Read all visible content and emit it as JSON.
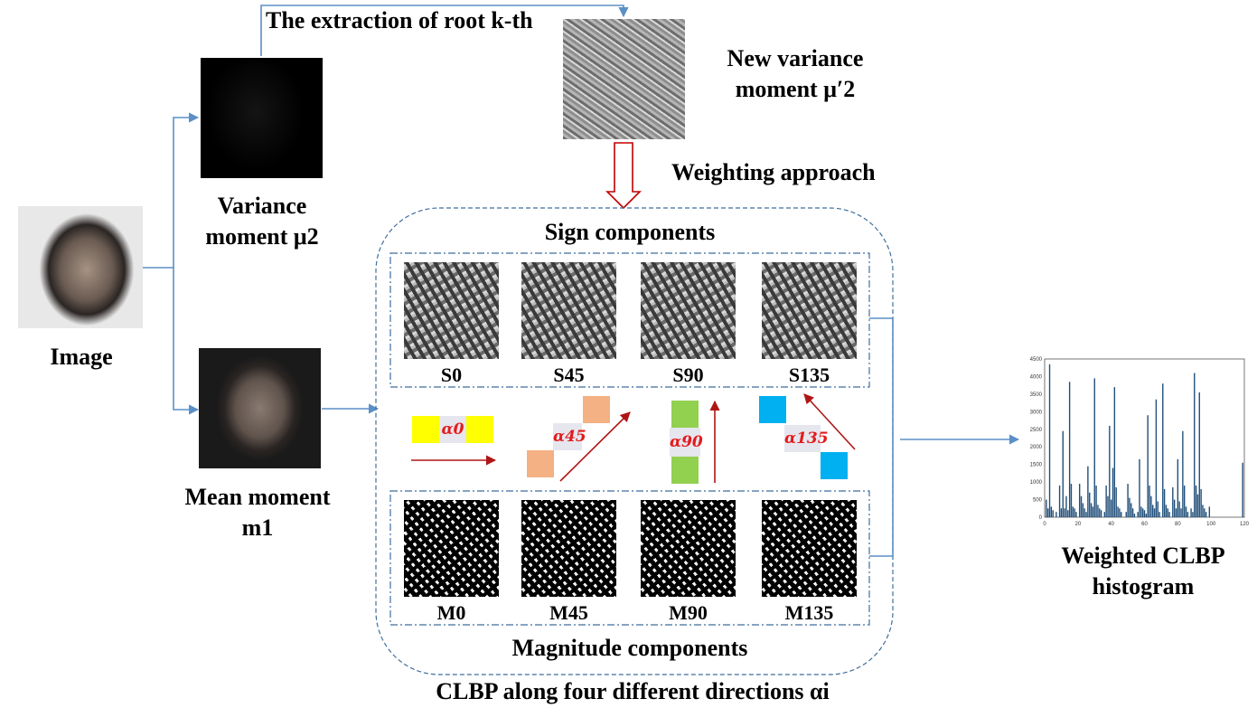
{
  "labels": {
    "extraction": "The extraction of root k-th",
    "new_variance": "New variance moment μ′2",
    "weighting": "Weighting approach",
    "variance": "Variance moment μ2",
    "image": "Image",
    "mean": "Mean moment m1",
    "sign_components": "Sign components",
    "magnitude_components": "Magnitude components",
    "clbp_caption": "CLBP along four different directions αi",
    "weighted_hist": "Weighted CLBP histogram"
  },
  "sign_labels": [
    "S0",
    "S45",
    "S90",
    "S135"
  ],
  "magnitude_labels": [
    "M0",
    "M45",
    "M90",
    "M135"
  ],
  "direction_alphas": [
    "α0",
    "α45",
    "α90",
    "α135"
  ],
  "colors": {
    "connector": "#5b8fc7",
    "box_border": "#3f6e9e",
    "red_arrow": "#b01515",
    "alpha_text": "#e31b1b",
    "yellow": "#ffff00",
    "peach": "#f4b183",
    "green": "#92d050",
    "cyan": "#00b0f0",
    "hist_bar": "#1f4e79"
  },
  "chart_data": {
    "type": "bar",
    "x": [
      1,
      2,
      3,
      4,
      5,
      6,
      7,
      8,
      9,
      10,
      11,
      12,
      13,
      14,
      15,
      16,
      17,
      18,
      19,
      20,
      21,
      22,
      23,
      24,
      25,
      26,
      27,
      28,
      29,
      30,
      31,
      32,
      33,
      34,
      35,
      36,
      37,
      38,
      39,
      40,
      41,
      42,
      43,
      44,
      45,
      46,
      47,
      48,
      49,
      50,
      51,
      52,
      53,
      54,
      55,
      56,
      57,
      58,
      59,
      60,
      61,
      62,
      63,
      64,
      65,
      66,
      67,
      68,
      69,
      70,
      71,
      72,
      73,
      74,
      75,
      76,
      77,
      78,
      79,
      80,
      81,
      82,
      83,
      84,
      85,
      86,
      87,
      88,
      89,
      90,
      91,
      92,
      93,
      94,
      95,
      96,
      97,
      98,
      99,
      100,
      101,
      102,
      103,
      104,
      105,
      106,
      107,
      108,
      109,
      110,
      111,
      112,
      113,
      114,
      115,
      116,
      117,
      118,
      119,
      120
    ],
    "values": [
      500,
      250,
      4350,
      300,
      200,
      0,
      150,
      0,
      900,
      250,
      2450,
      250,
      600,
      200,
      3850,
      950,
      300,
      250,
      150,
      0,
      950,
      600,
      400,
      250,
      150,
      1450,
      700,
      400,
      300,
      3950,
      900,
      350,
      250,
      200,
      0,
      150,
      900,
      600,
      2600,
      500,
      1400,
      3700,
      850,
      300,
      250,
      150,
      0,
      0,
      150,
      950,
      550,
      400,
      250,
      100,
      0,
      150,
      1650,
      300,
      250,
      200,
      100,
      2900,
      900,
      600,
      350,
      250,
      3350,
      450,
      150,
      0,
      3800,
      800,
      350,
      250,
      150,
      0,
      850,
      500,
      250,
      1650,
      450,
      250,
      2450,
      900,
      300,
      150,
      0,
      250,
      150,
      4100,
      900,
      650,
      3550,
      800,
      350,
      250,
      150,
      0,
      300,
      0,
      0,
      0,
      0,
      0,
      0,
      0,
      0,
      0,
      0,
      0,
      0,
      0,
      0,
      0,
      0,
      0,
      0,
      0,
      1550,
      0
    ],
    "ylim": [
      0,
      4500
    ],
    "xlim": [
      0,
      120
    ],
    "yticks": [
      "0",
      "500",
      "1000",
      "1500",
      "2000",
      "2500",
      "3000",
      "3500",
      "4000",
      "4500"
    ],
    "xticks": [
      "0",
      "20",
      "40",
      "60",
      "80",
      "100",
      "120"
    ]
  }
}
